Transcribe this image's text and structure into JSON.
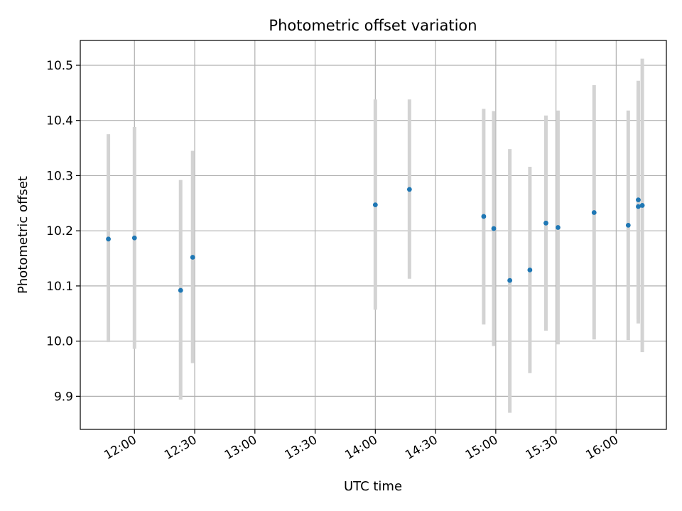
{
  "chart_data": {
    "type": "scatter",
    "title": "Photometric offset variation",
    "xlabel": "UTC time",
    "ylabel": "Photometric offset",
    "x_ticks": [
      "12:00",
      "12:30",
      "13:00",
      "13:30",
      "14:00",
      "14:30",
      "15:00",
      "15:30",
      "16:00"
    ],
    "xlim": [
      "11:33",
      "16:25"
    ],
    "ylim": [
      9.84,
      10.545
    ],
    "y_ticks": [
      9.9,
      10.0,
      10.1,
      10.2,
      10.3,
      10.4,
      10.5
    ],
    "grid": true,
    "marker_color": "#1f77b4",
    "errorbar_color": "#d3d3d3",
    "points": [
      {
        "x": "11:47",
        "y": 10.185,
        "low": 9.998,
        "high": 10.375
      },
      {
        "x": "12:00",
        "y": 10.187,
        "low": 9.986,
        "high": 10.388
      },
      {
        "x": "12:23",
        "y": 10.092,
        "low": 9.894,
        "high": 10.292
      },
      {
        "x": "12:29",
        "y": 10.152,
        "low": 9.96,
        "high": 10.345
      },
      {
        "x": "14:00",
        "y": 10.247,
        "low": 10.057,
        "high": 10.438
      },
      {
        "x": "14:17",
        "y": 10.275,
        "low": 10.113,
        "high": 10.438
      },
      {
        "x": "14:54",
        "y": 10.226,
        "low": 10.03,
        "high": 10.421
      },
      {
        "x": "14:59",
        "y": 10.204,
        "low": 9.991,
        "high": 10.417
      },
      {
        "x": "15:07",
        "y": 10.11,
        "low": 9.87,
        "high": 10.348
      },
      {
        "x": "15:17",
        "y": 10.129,
        "low": 9.942,
        "high": 10.316
      },
      {
        "x": "15:25",
        "y": 10.214,
        "low": 10.019,
        "high": 10.409
      },
      {
        "x": "15:31",
        "y": 10.206,
        "low": 9.994,
        "high": 10.418
      },
      {
        "x": "15:49",
        "y": 10.233,
        "low": 10.003,
        "high": 10.464
      },
      {
        "x": "16:06",
        "y": 10.21,
        "low": 10.002,
        "high": 10.418
      },
      {
        "x": "16:11",
        "y": 10.244,
        "low": 10.032,
        "high": 10.456
      },
      {
        "x": "16:11",
        "y": 10.256,
        "low": 10.04,
        "high": 10.472
      },
      {
        "x": "16:13",
        "y": 10.246,
        "low": 9.98,
        "high": 10.512
      }
    ]
  }
}
